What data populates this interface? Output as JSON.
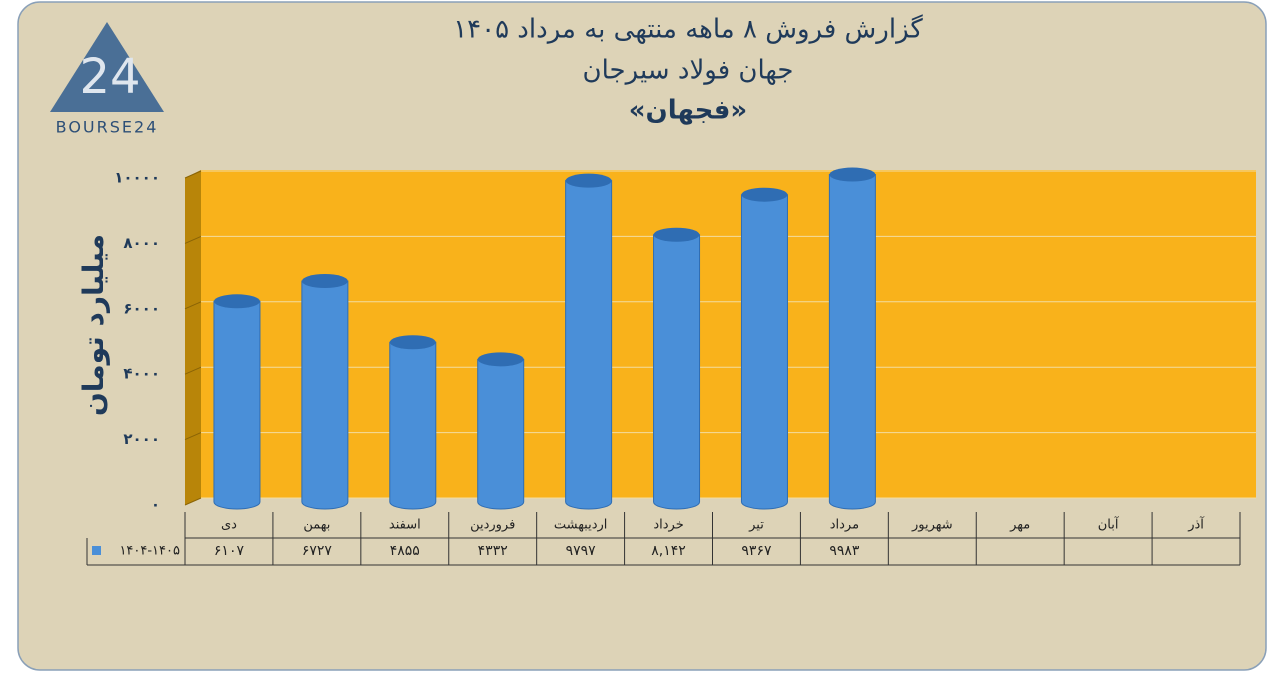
{
  "logo": {
    "mark": "24",
    "text": "BOURSE24"
  },
  "chart_data": {
    "type": "bar",
    "title": "گزارش  فروش ۸ ماهه منتهی به مرداد ۱۴۰۵",
    "subtitle": "جهان فولاد سیرجان",
    "subtitle2": "«فجهان»",
    "y_label": "میلیارد تومان",
    "categories": [
      "دی",
      "بهمن",
      "اسفند",
      "فروردین",
      "اردیبهشت",
      "خرداد",
      "تیر",
      "مرداد",
      "شهریور",
      "مهر",
      "آبان",
      "آذر"
    ],
    "series": [
      {
        "name": "۱۴۰۴-۱۴۰۵",
        "color": "#4a8fd8",
        "values": [
          6107,
          6727,
          4855,
          4332,
          9797,
          8142,
          9367,
          9983,
          null,
          null,
          null,
          null
        ],
        "value_labels": [
          "۶۱۰۷",
          "۶۷۲۷",
          "۴۸۵۵",
          "۴۳۳۲",
          "۹۷۹۷",
          "۸,۱۴۲",
          "۹۳۶۷",
          "۹۹۸۳",
          null,
          null,
          null,
          null
        ]
      }
    ],
    "ylim": [
      0,
      10000
    ],
    "yticks": [
      {
        "value": 0,
        "label": "۰"
      },
      {
        "value": 2000,
        "label": "۲۰۰۰"
      },
      {
        "value": 4000,
        "label": "۴۰۰۰"
      },
      {
        "value": 6000,
        "label": "۶۰۰۰"
      },
      {
        "value": 8000,
        "label": "۸۰۰۰"
      },
      {
        "value": 10000,
        "label": "۱۰۰۰۰"
      }
    ],
    "grid": true,
    "plot_color": "#f9b21b"
  }
}
